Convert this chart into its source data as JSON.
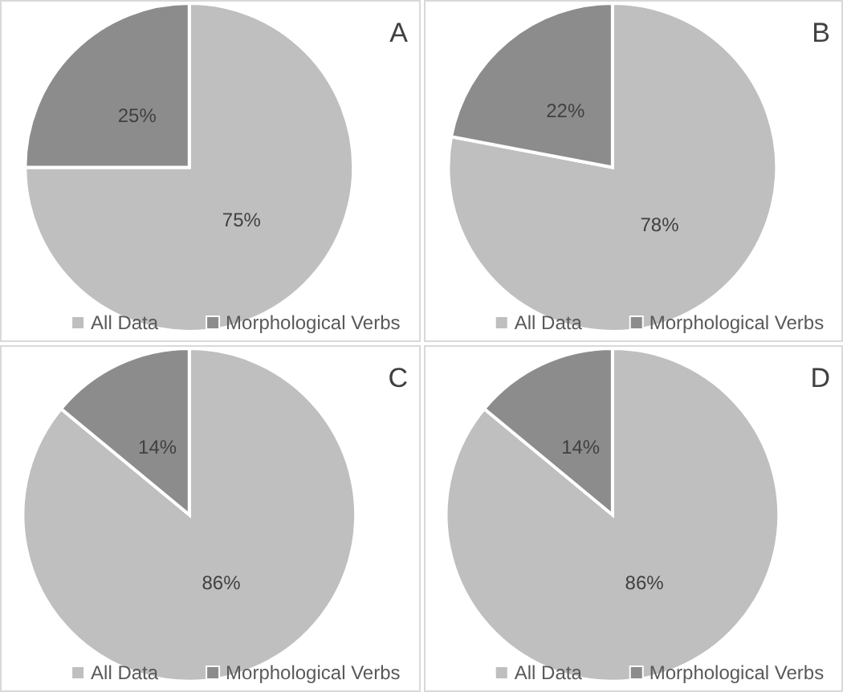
{
  "chart_data": [
    {
      "type": "pie",
      "title": "A",
      "categories": [
        "All Data",
        "Morphological Verbs"
      ],
      "values": [
        75,
        25
      ],
      "value_labels": [
        "75%",
        "25%"
      ],
      "colors": [
        "#bfbfbf",
        "#8c8c8c"
      ],
      "legend": "bottom"
    },
    {
      "type": "pie",
      "title": "B",
      "categories": [
        "All Data",
        "Morphological Verbs"
      ],
      "values": [
        78,
        22
      ],
      "value_labels": [
        "78%",
        "22%"
      ],
      "colors": [
        "#bfbfbf",
        "#8c8c8c"
      ],
      "legend": "bottom"
    },
    {
      "type": "pie",
      "title": "C",
      "categories": [
        "All Data",
        "Morphological Verbs"
      ],
      "values": [
        86,
        14
      ],
      "value_labels": [
        "86%",
        "14%"
      ],
      "colors": [
        "#bfbfbf",
        "#8c8c8c"
      ],
      "legend": "bottom"
    },
    {
      "type": "pie",
      "title": "D",
      "categories": [
        "All Data",
        "Morphological Verbs"
      ],
      "values": [
        86,
        14
      ],
      "value_labels": [
        "86%",
        "14%"
      ],
      "colors": [
        "#bfbfbf",
        "#8c8c8c"
      ],
      "legend": "bottom"
    }
  ]
}
